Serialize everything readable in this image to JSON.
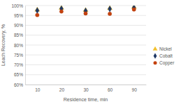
{
  "chart_data": {
    "type": "scatter",
    "x_label": "Residence time, min",
    "y_label": "Leach Recovery, %",
    "categories": [
      "10",
      "20",
      "30",
      "60",
      "90"
    ],
    "series": [
      {
        "name": "Nickel",
        "color": "#f2c12e",
        "marker": "triangle",
        "values": [
          97.8,
          98.7,
          97.6,
          98.6,
          99.2
        ]
      },
      {
        "name": "Cobalt",
        "color": "#1f3864",
        "marker": "diamond",
        "values": [
          97.5,
          98.4,
          97.3,
          98.3,
          98.9
        ]
      },
      {
        "name": "Copper",
        "color": "#c4420f",
        "marker": "circle",
        "values": [
          95.2,
          97.0,
          96.0,
          95.8,
          98.0
        ]
      }
    ],
    "ylim": [
      60,
      100
    ],
    "yticks": [
      {
        "value": 60,
        "label": "60%"
      },
      {
        "value": 65,
        "label": "65%"
      },
      {
        "value": 70,
        "label": "70%"
      },
      {
        "value": 75,
        "label": "75%"
      },
      {
        "value": 80,
        "label": "80%"
      },
      {
        "value": 85,
        "label": "85%"
      },
      {
        "value": 90,
        "label": "90%"
      },
      {
        "value": 95,
        "label": "95%"
      },
      {
        "value": 100,
        "label": "100%"
      }
    ],
    "grid": true,
    "legend": "right"
  }
}
